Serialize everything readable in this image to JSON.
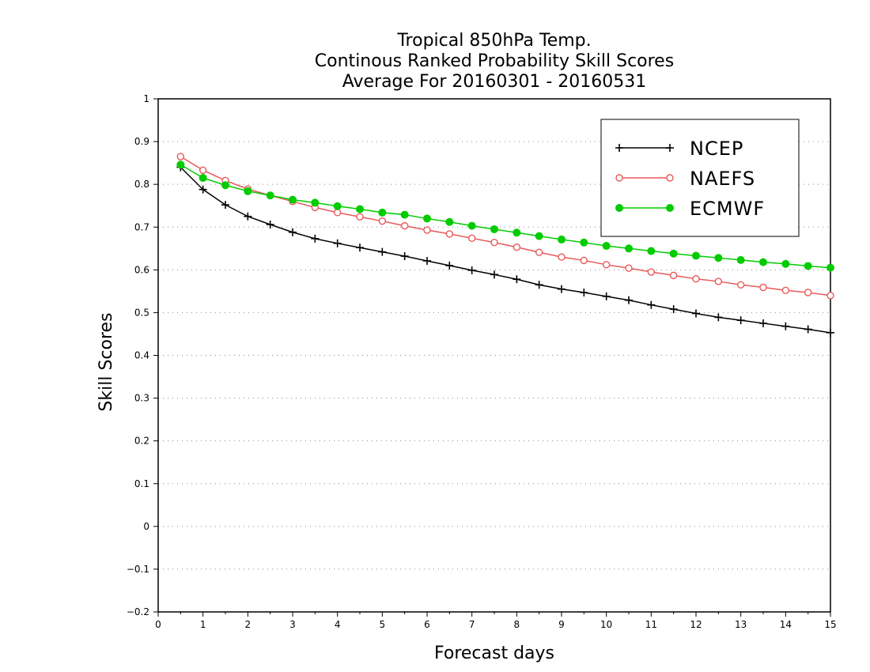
{
  "chart_data": {
    "type": "line",
    "title": [
      "Tropical 850hPa Temp.",
      "Continous Ranked Probability Skill Scores",
      "Average For 20160301 - 20160531"
    ],
    "xlabel": "Forecast days",
    "ylabel": "Skill Scores",
    "xlim": [
      0,
      15
    ],
    "ylim": [
      -0.2,
      1
    ],
    "x_ticks": [
      0,
      1,
      2,
      3,
      4,
      5,
      6,
      7,
      8,
      9,
      10,
      11,
      12,
      13,
      14,
      15
    ],
    "y_ticks": [
      -0.2,
      -0.1,
      0,
      0.1,
      0.2,
      0.3,
      0.4,
      0.5,
      0.6,
      0.7,
      0.8,
      0.9,
      1
    ],
    "grid": "horizontal dotted",
    "legend_position": "top-right",
    "x": [
      0.5,
      1,
      1.5,
      2,
      2.5,
      3,
      3.5,
      4,
      4.5,
      5,
      5.5,
      6,
      6.5,
      7,
      7.5,
      8,
      8.5,
      9,
      9.5,
      10,
      10.5,
      11,
      11.5,
      12,
      12.5,
      13,
      13.5,
      14,
      14.5,
      15
    ],
    "series": [
      {
        "name": "NCEP",
        "color": "#000000",
        "marker": "plus",
        "values": [
          0.84,
          0.788,
          0.752,
          0.725,
          0.706,
          0.688,
          0.673,
          0.662,
          0.652,
          0.642,
          0.632,
          0.621,
          0.61,
          0.599,
          0.589,
          0.578,
          0.565,
          0.555,
          0.547,
          0.538,
          0.529,
          0.518,
          0.508,
          0.498,
          0.489,
          0.482,
          0.475,
          0.468,
          0.461,
          0.453
        ]
      },
      {
        "name": "NAEFS",
        "color": "#e85a5a",
        "marker": "open-circle",
        "values": [
          0.865,
          0.833,
          0.809,
          0.789,
          0.774,
          0.76,
          0.746,
          0.734,
          0.724,
          0.714,
          0.703,
          0.693,
          0.684,
          0.674,
          0.664,
          0.653,
          0.641,
          0.63,
          0.622,
          0.612,
          0.604,
          0.595,
          0.587,
          0.579,
          0.573,
          0.565,
          0.559,
          0.552,
          0.547,
          0.54
        ]
      },
      {
        "name": "ECMWF",
        "color": "#00cc00",
        "marker": "filled-circle",
        "values": [
          0.846,
          0.815,
          0.798,
          0.784,
          0.774,
          0.764,
          0.757,
          0.749,
          0.742,
          0.734,
          0.729,
          0.72,
          0.712,
          0.703,
          0.695,
          0.687,
          0.679,
          0.671,
          0.664,
          0.656,
          0.65,
          0.644,
          0.638,
          0.633,
          0.628,
          0.623,
          0.618,
          0.614,
          0.609,
          0.605
        ]
      }
    ]
  }
}
